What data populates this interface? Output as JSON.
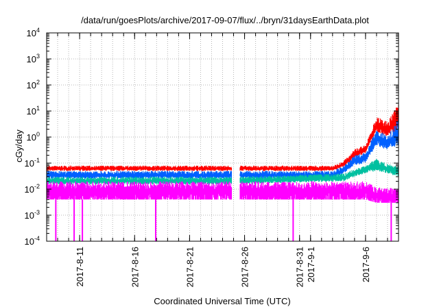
{
  "chart_data": {
    "type": "line",
    "title": "/data/run/goesPlots/archive/2017-09-07/flux/../bryn/31daysEarthData.plot",
    "xlabel": "Coordinated Universal Time (UTC)",
    "ylabel": "cGy/day",
    "y_scale": "log",
    "ylim": [
      0.0001,
      10000
    ],
    "xlim": [
      "2017-08-08",
      "2017-09-09"
    ],
    "grid": true,
    "y_ticks": [
      {
        "base": "10",
        "exp": "-4",
        "value": 0.0001
      },
      {
        "base": "10",
        "exp": "-3",
        "value": 0.001
      },
      {
        "base": "10",
        "exp": "-2",
        "value": 0.01
      },
      {
        "base": "10",
        "exp": "-1",
        "value": 0.1
      },
      {
        "base": "10",
        "exp": "0",
        "value": 1
      },
      {
        "base": "10",
        "exp": "1",
        "value": 10
      },
      {
        "base": "10",
        "exp": "2",
        "value": 100
      },
      {
        "base": "10",
        "exp": "3",
        "value": 1000
      },
      {
        "base": "10",
        "exp": "4",
        "value": 10000
      }
    ],
    "x_ticks": [
      {
        "label": "2017-8-11",
        "date": "2017-08-11"
      },
      {
        "label": "2017-8-16",
        "date": "2017-08-16"
      },
      {
        "label": "2017-8-21",
        "date": "2017-08-21"
      },
      {
        "label": "2017-8-26",
        "date": "2017-08-26"
      },
      {
        "label": "2017-8-31",
        "date": "2017-08-31"
      },
      {
        "label": "2017-9-1",
        "date": "2017-09-01"
      },
      {
        "label": "2017-9-6",
        "date": "2017-09-06"
      }
    ],
    "gap": [
      "2017-08-24 20:00",
      "2017-08-25 14:00"
    ],
    "series": [
      {
        "color": "#ff0000",
        "envelope": [
          [
            "2017-08-08",
            0.05,
            0.08
          ],
          [
            "2017-08-24",
            0.05,
            0.08
          ],
          [
            "2017-08-25",
            0.05,
            0.08
          ],
          [
            "2017-09-03",
            0.05,
            0.08
          ],
          [
            "2017-09-04",
            0.07,
            0.12
          ],
          [
            "2017-09-05",
            0.15,
            0.35
          ],
          [
            "2017-09-06",
            0.25,
            0.5
          ],
          [
            "2017-09-07",
            1.5,
            6
          ],
          [
            "2017-09-08",
            1.0,
            4
          ],
          [
            "2017-09-09",
            2.0,
            20
          ]
        ]
      },
      {
        "color": "#0060ff",
        "envelope": [
          [
            "2017-08-08",
            0.025,
            0.05
          ],
          [
            "2017-08-24",
            0.025,
            0.05
          ],
          [
            "2017-08-25",
            0.025,
            0.05
          ],
          [
            "2017-09-03",
            0.025,
            0.05
          ],
          [
            "2017-09-04",
            0.04,
            0.08
          ],
          [
            "2017-09-05",
            0.08,
            0.2
          ],
          [
            "2017-09-06",
            0.1,
            0.25
          ],
          [
            "2017-09-07",
            0.5,
            2
          ],
          [
            "2017-09-08",
            0.3,
            1.2
          ],
          [
            "2017-09-09",
            0.5,
            5
          ]
        ]
      },
      {
        "color": "#00c0a0",
        "envelope": [
          [
            "2017-08-08",
            0.015,
            0.03
          ],
          [
            "2017-08-24",
            0.015,
            0.03
          ],
          [
            "2017-08-25",
            0.015,
            0.03
          ],
          [
            "2017-09-04",
            0.02,
            0.04
          ],
          [
            "2017-09-05",
            0.03,
            0.06
          ],
          [
            "2017-09-06",
            0.04,
            0.08
          ],
          [
            "2017-09-07",
            0.05,
            0.15
          ],
          [
            "2017-09-08",
            0.04,
            0.1
          ],
          [
            "2017-09-09",
            0.03,
            0.08
          ]
        ]
      },
      {
        "color": "#ff00ff",
        "envelope": [
          [
            "2017-08-08",
            0.004,
            0.02
          ],
          [
            "2017-08-24",
            0.004,
            0.02
          ],
          [
            "2017-08-25",
            0.004,
            0.02
          ],
          [
            "2017-09-06",
            0.004,
            0.02
          ],
          [
            "2017-09-07",
            0.003,
            0.012
          ],
          [
            "2017-09-08",
            0.003,
            0.012
          ],
          [
            "2017-09-09",
            0.003,
            0.01
          ]
        ],
        "dropouts": [
          "2017-08-08 20:00",
          "2017-08-10 12:00",
          "2017-08-11 06:00",
          "2017-08-17 22:00",
          "2017-08-30 10:00",
          "2017-09-08 08:00"
        ]
      }
    ]
  }
}
